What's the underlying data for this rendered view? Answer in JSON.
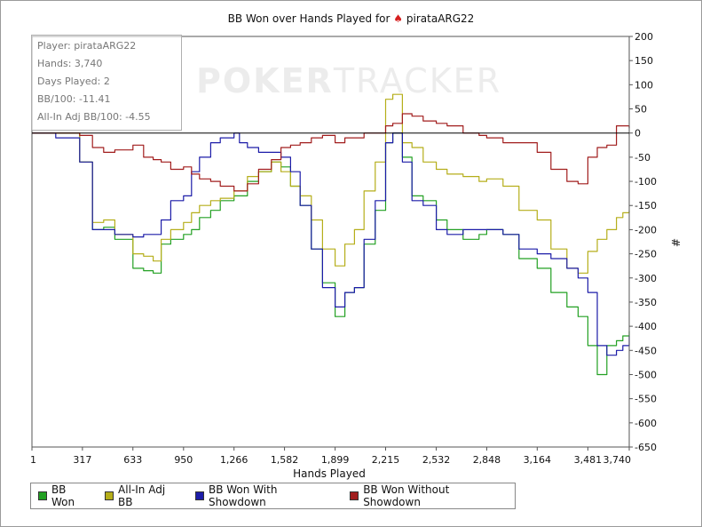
{
  "chart_data": {
    "type": "line",
    "title_prefix": "BB Won over Hands Played for",
    "title_icon": "spade-icon",
    "title_player": "pirataARG22",
    "xlabel": "Hands Played",
    "ylabel": "#",
    "xlim": [
      1,
      3740
    ],
    "ylim": [
      -650,
      200
    ],
    "x_ticks": [
      "1",
      "317",
      "633",
      "950",
      "1,266",
      "1,582",
      "1,899",
      "2,215",
      "2,532",
      "2,848",
      "3,164",
      "3,481",
      "3,740"
    ],
    "y_ticks": [
      200,
      150,
      100,
      50,
      0,
      -50,
      -100,
      -150,
      -200,
      -250,
      -300,
      -350,
      -400,
      -450,
      -500,
      -550,
      -600,
      -650
    ],
    "grid": false,
    "legend_position": "bottom",
    "series": [
      {
        "name": "BB Won",
        "color": "#22a022",
        "points": [
          [
            1,
            0
          ],
          [
            150,
            0
          ],
          [
            300,
            -60
          ],
          [
            380,
            -200
          ],
          [
            450,
            -195
          ],
          [
            520,
            -220
          ],
          [
            633,
            -280
          ],
          [
            700,
            -285
          ],
          [
            760,
            -290
          ],
          [
            810,
            -230
          ],
          [
            870,
            -220
          ],
          [
            950,
            -210
          ],
          [
            1000,
            -200
          ],
          [
            1050,
            -175
          ],
          [
            1120,
            -160
          ],
          [
            1180,
            -140
          ],
          [
            1266,
            -130
          ],
          [
            1350,
            -100
          ],
          [
            1420,
            -80
          ],
          [
            1500,
            -60
          ],
          [
            1560,
            -70
          ],
          [
            1620,
            -110
          ],
          [
            1680,
            -150
          ],
          [
            1750,
            -240
          ],
          [
            1820,
            -310
          ],
          [
            1899,
            -380
          ],
          [
            1960,
            -330
          ],
          [
            2020,
            -320
          ],
          [
            2080,
            -230
          ],
          [
            2150,
            -160
          ],
          [
            2215,
            -20
          ],
          [
            2260,
            0
          ],
          [
            2320,
            -50
          ],
          [
            2380,
            -130
          ],
          [
            2450,
            -140
          ],
          [
            2532,
            -180
          ],
          [
            2600,
            -200
          ],
          [
            2700,
            -220
          ],
          [
            2800,
            -210
          ],
          [
            2848,
            -200
          ],
          [
            2950,
            -210
          ],
          [
            3050,
            -260
          ],
          [
            3164,
            -280
          ],
          [
            3250,
            -330
          ],
          [
            3350,
            -360
          ],
          [
            3420,
            -380
          ],
          [
            3481,
            -440
          ],
          [
            3540,
            -500
          ],
          [
            3600,
            -440
          ],
          [
            3660,
            -430
          ],
          [
            3700,
            -420
          ],
          [
            3740,
            -410
          ]
        ]
      },
      {
        "name": "All-In Adj BB",
        "color": "#b5ae1a",
        "points": [
          [
            1,
            0
          ],
          [
            150,
            0
          ],
          [
            300,
            -60
          ],
          [
            380,
            -185
          ],
          [
            450,
            -180
          ],
          [
            520,
            -210
          ],
          [
            633,
            -250
          ],
          [
            700,
            -255
          ],
          [
            760,
            -265
          ],
          [
            810,
            -220
          ],
          [
            870,
            -200
          ],
          [
            950,
            -185
          ],
          [
            1000,
            -165
          ],
          [
            1050,
            -150
          ],
          [
            1120,
            -140
          ],
          [
            1180,
            -135
          ],
          [
            1266,
            -120
          ],
          [
            1350,
            -90
          ],
          [
            1420,
            -80
          ],
          [
            1500,
            -60
          ],
          [
            1560,
            -80
          ],
          [
            1620,
            -110
          ],
          [
            1680,
            -130
          ],
          [
            1750,
            -180
          ],
          [
            1820,
            -240
          ],
          [
            1899,
            -275
          ],
          [
            1960,
            -230
          ],
          [
            2020,
            -200
          ],
          [
            2080,
            -120
          ],
          [
            2150,
            -60
          ],
          [
            2215,
            70
          ],
          [
            2260,
            80
          ],
          [
            2320,
            -20
          ],
          [
            2380,
            -30
          ],
          [
            2450,
            -60
          ],
          [
            2532,
            -75
          ],
          [
            2600,
            -85
          ],
          [
            2700,
            -90
          ],
          [
            2800,
            -100
          ],
          [
            2848,
            -95
          ],
          [
            2950,
            -110
          ],
          [
            3050,
            -160
          ],
          [
            3164,
            -180
          ],
          [
            3250,
            -240
          ],
          [
            3350,
            -280
          ],
          [
            3420,
            -290
          ],
          [
            3481,
            -245
          ],
          [
            3540,
            -220
          ],
          [
            3600,
            -200
          ],
          [
            3660,
            -175
          ],
          [
            3700,
            -165
          ],
          [
            3740,
            -160
          ]
        ]
      },
      {
        "name": "BB Won With Showdown",
        "color": "#1c1ca8",
        "points": [
          [
            1,
            0
          ],
          [
            150,
            -10
          ],
          [
            300,
            -60
          ],
          [
            380,
            -200
          ],
          [
            450,
            -200
          ],
          [
            520,
            -210
          ],
          [
            633,
            -215
          ],
          [
            700,
            -210
          ],
          [
            760,
            -210
          ],
          [
            810,
            -180
          ],
          [
            870,
            -140
          ],
          [
            950,
            -130
          ],
          [
            1000,
            -80
          ],
          [
            1050,
            -50
          ],
          [
            1120,
            -20
          ],
          [
            1180,
            -10
          ],
          [
            1266,
            0
          ],
          [
            1300,
            -20
          ],
          [
            1350,
            -30
          ],
          [
            1420,
            -40
          ],
          [
            1500,
            -40
          ],
          [
            1560,
            -50
          ],
          [
            1620,
            -80
          ],
          [
            1680,
            -150
          ],
          [
            1750,
            -240
          ],
          [
            1820,
            -320
          ],
          [
            1899,
            -360
          ],
          [
            1960,
            -330
          ],
          [
            2020,
            -320
          ],
          [
            2080,
            -220
          ],
          [
            2150,
            -140
          ],
          [
            2215,
            -20
          ],
          [
            2260,
            0
          ],
          [
            2320,
            -60
          ],
          [
            2380,
            -140
          ],
          [
            2450,
            -150
          ],
          [
            2532,
            -200
          ],
          [
            2600,
            -210
          ],
          [
            2700,
            -200
          ],
          [
            2800,
            -200
          ],
          [
            2848,
            -200
          ],
          [
            2950,
            -210
          ],
          [
            3050,
            -240
          ],
          [
            3164,
            -250
          ],
          [
            3250,
            -260
          ],
          [
            3350,
            -280
          ],
          [
            3420,
            -300
          ],
          [
            3481,
            -330
          ],
          [
            3540,
            -440
          ],
          [
            3600,
            -460
          ],
          [
            3660,
            -450
          ],
          [
            3700,
            -440
          ],
          [
            3740,
            -420
          ]
        ]
      },
      {
        "name": "BB Won Without Showdown",
        "color": "#a11d1d",
        "points": [
          [
            1,
            0
          ],
          [
            150,
            0
          ],
          [
            300,
            -5
          ],
          [
            380,
            -30
          ],
          [
            450,
            -40
          ],
          [
            520,
            -35
          ],
          [
            633,
            -25
          ],
          [
            700,
            -50
          ],
          [
            760,
            -55
          ],
          [
            810,
            -60
          ],
          [
            870,
            -75
          ],
          [
            950,
            -70
          ],
          [
            1000,
            -85
          ],
          [
            1050,
            -95
          ],
          [
            1120,
            -100
          ],
          [
            1180,
            -110
          ],
          [
            1266,
            -120
          ],
          [
            1300,
            -120
          ],
          [
            1350,
            -105
          ],
          [
            1420,
            -75
          ],
          [
            1500,
            -55
          ],
          [
            1560,
            -30
          ],
          [
            1620,
            -25
          ],
          [
            1680,
            -20
          ],
          [
            1750,
            -10
          ],
          [
            1820,
            -5
          ],
          [
            1899,
            -20
          ],
          [
            1960,
            -10
          ],
          [
            2020,
            -10
          ],
          [
            2080,
            0
          ],
          [
            2150,
            0
          ],
          [
            2215,
            15
          ],
          [
            2260,
            20
          ],
          [
            2320,
            40
          ],
          [
            2380,
            35
          ],
          [
            2450,
            25
          ],
          [
            2532,
            20
          ],
          [
            2600,
            15
          ],
          [
            2700,
            0
          ],
          [
            2800,
            -5
          ],
          [
            2848,
            -10
          ],
          [
            2950,
            -20
          ],
          [
            3050,
            -20
          ],
          [
            3164,
            -40
          ],
          [
            3250,
            -75
          ],
          [
            3350,
            -100
          ],
          [
            3420,
            -105
          ],
          [
            3481,
            -50
          ],
          [
            3540,
            -30
          ],
          [
            3600,
            -25
          ],
          [
            3660,
            15
          ],
          [
            3700,
            15
          ],
          [
            3740,
            10
          ]
        ]
      }
    ]
  },
  "info": {
    "player": "Player: pirataARG22",
    "hands": "Hands: 3,740",
    "days": "Days Played: 2",
    "bb100": "BB/100: -11.41",
    "allin_bb100": "All-In Adj BB/100: -4.55"
  },
  "watermark": {
    "part1": "POKER",
    "part2": "TRACKER"
  }
}
